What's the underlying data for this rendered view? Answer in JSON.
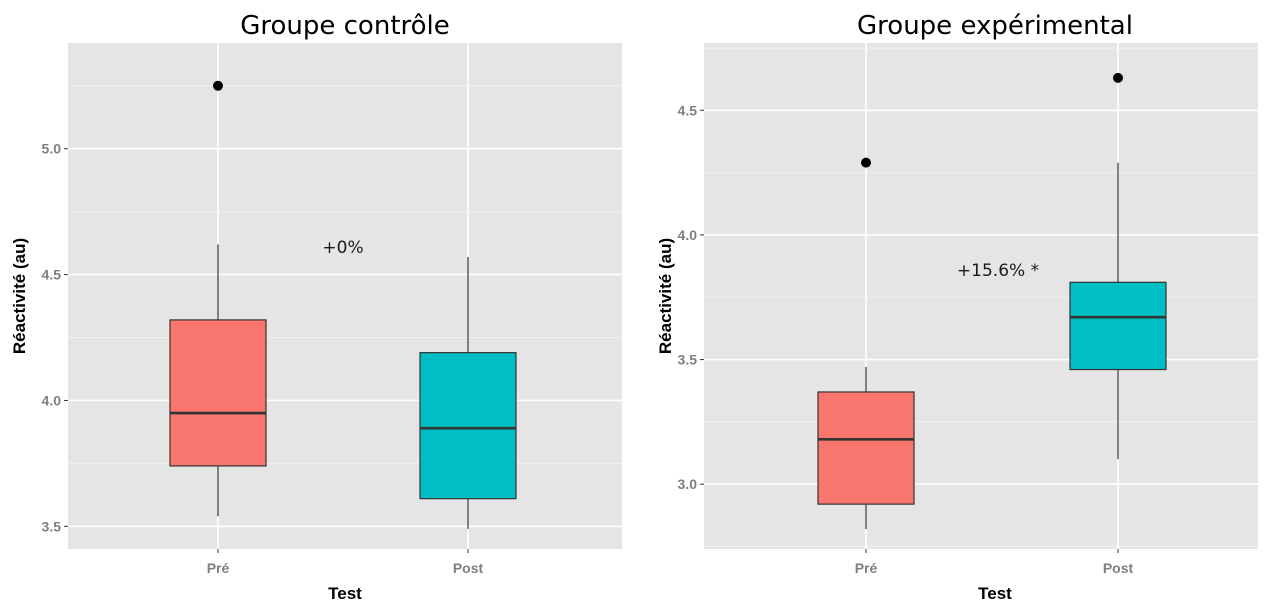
{
  "chart_data": [
    {
      "type": "boxplot",
      "title": "Groupe contrôle",
      "xlabel": "Test",
      "ylabel": "Réactivité (au)",
      "ylim": [
        3.41,
        5.42
      ],
      "yticks": [
        3.5,
        4.0,
        4.5,
        5.0
      ],
      "ytick_labels": [
        "3.5",
        "4.0",
        "4.5",
        "5.0"
      ],
      "grid": true,
      "annotation": {
        "text": "+0%",
        "y": 4.61
      },
      "categories": [
        "Pré",
        "Post"
      ],
      "boxes": [
        {
          "category": "Pré",
          "whisker_low": 3.54,
          "q1": 3.74,
          "median": 3.95,
          "q3": 4.32,
          "whisker_high": 4.62,
          "outliers": [
            5.25
          ],
          "color": "#f8766d"
        },
        {
          "category": "Post",
          "whisker_low": 3.49,
          "q1": 3.61,
          "median": 3.89,
          "q3": 4.19,
          "whisker_high": 4.57,
          "outliers": [],
          "color": "#00bfc4"
        }
      ]
    },
    {
      "type": "boxplot",
      "title": "Groupe expérimental",
      "xlabel": "Test",
      "ylabel": "Réactivité (au)",
      "ylim": [
        2.74,
        4.77
      ],
      "yticks": [
        3.0,
        3.5,
        4.0,
        4.5
      ],
      "ytick_labels": [
        "3.0",
        "3.5",
        "4.0",
        "4.5"
      ],
      "grid": true,
      "annotation": {
        "text": "+15.6% *",
        "y": 3.86
      },
      "categories": [
        "Pré",
        "Post"
      ],
      "boxes": [
        {
          "category": "Pré",
          "whisker_low": 2.82,
          "q1": 2.92,
          "median": 3.18,
          "q3": 3.37,
          "whisker_high": 3.47,
          "outliers": [
            4.29
          ],
          "color": "#f8766d"
        },
        {
          "category": "Post",
          "whisker_low": 3.1,
          "q1": 3.46,
          "median": 3.67,
          "q3": 3.81,
          "whisker_high": 4.29,
          "outliers": [
            4.63
          ],
          "color": "#00bfc4"
        }
      ]
    }
  ]
}
